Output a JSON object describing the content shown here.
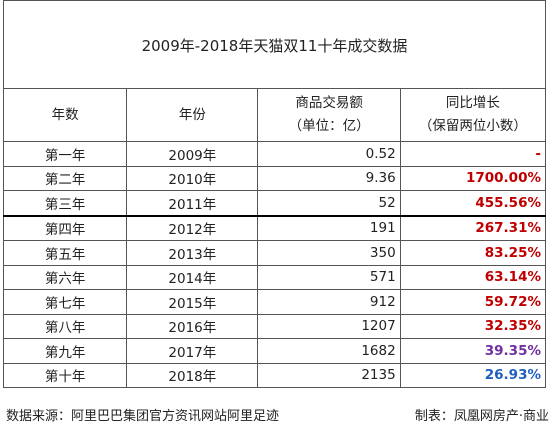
{
  "title": "2009年-2018年天猫双11十年成交数据",
  "headers": {
    "col1": "年数",
    "col2": "年份",
    "col3_line1": "商品交易额",
    "col3_line2": "（单位：亿）",
    "col4_line1": "同比增长",
    "col4_line2": "（保留两位小数）"
  },
  "rows": [
    {
      "n": "第一年",
      "year": "2009年",
      "gmv": "0.52",
      "growth": "-",
      "growth_color": "#c00000"
    },
    {
      "n": "第二年",
      "year": "2010年",
      "gmv": "9.36",
      "growth": "1700.00%",
      "growth_color": "#c00000"
    },
    {
      "n": "第三年",
      "year": "2011年",
      "gmv": "52",
      "growth": "455.56%",
      "growth_color": "#c00000"
    },
    {
      "n": "第四年",
      "year": "2012年",
      "gmv": "191",
      "growth": "267.31%",
      "growth_color": "#c00000"
    },
    {
      "n": "第五年",
      "year": "2013年",
      "gmv": "350",
      "growth": "83.25%",
      "growth_color": "#c00000"
    },
    {
      "n": "第六年",
      "year": "2014年",
      "gmv": "571",
      "growth": "63.14%",
      "growth_color": "#c00000"
    },
    {
      "n": "第七年",
      "year": "2015年",
      "gmv": "912",
      "growth": "59.72%",
      "growth_color": "#c00000"
    },
    {
      "n": "第八年",
      "year": "2016年",
      "gmv": "1207",
      "growth": "32.35%",
      "growth_color": "#c00000"
    },
    {
      "n": "第九年",
      "year": "2017年",
      "gmv": "1682",
      "growth": "39.35%",
      "growth_color": "#7030a0"
    },
    {
      "n": "第十年",
      "year": "2018年",
      "gmv": "2135",
      "growth": "26.93%",
      "growth_color": "#1f5fbf"
    }
  ],
  "footer": {
    "source": "数据来源：阿里巴巴集团官方资讯网站阿里足迹",
    "maker": "制表：凤凰网房产·商业"
  }
}
